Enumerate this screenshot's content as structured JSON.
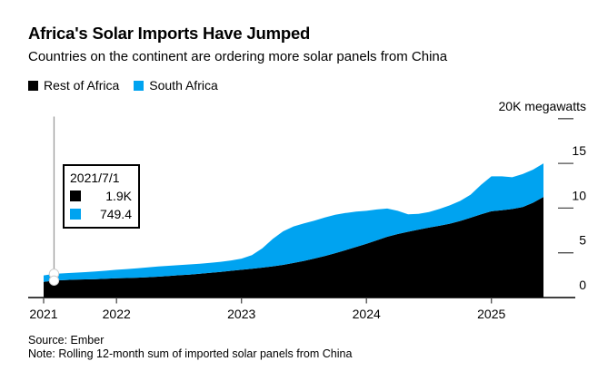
{
  "tooltip": {
    "date": "2021/7/1",
    "month_index": 1,
    "rows": [
      {
        "series": "Rest of Africa",
        "value": "1.9K"
      },
      {
        "series": "South Africa",
        "value": "749.4"
      }
    ]
  },
  "chart_data": {
    "type": "area",
    "stacked": true,
    "title": "Africa's Solar Imports Have Jumped",
    "subtitle": "Countries on the continent are ordering more solar panels from China",
    "source": "Source: Ember",
    "note": "Note: Rolling 12-month sum of imported solar panels from China",
    "unit_label": "20K megawatts",
    "value_unit": "thousand megawatts",
    "xlabel": "",
    "ylabel": "megawatts",
    "ylim": [
      0,
      20
    ],
    "y_ticks": [
      0,
      5,
      10,
      15
    ],
    "x_ticks": [
      {
        "label": "2021",
        "index": 0
      },
      {
        "label": "2022",
        "index": 7
      },
      {
        "label": "2023",
        "index": 19
      },
      {
        "label": "2024",
        "index": 31
      },
      {
        "label": "2025",
        "index": 43
      }
    ],
    "grid": false,
    "legend_position": "top-left",
    "categories": [
      "2021-06",
      "2021-07",
      "2021-08",
      "2021-09",
      "2021-10",
      "2021-11",
      "2021-12",
      "2022-01",
      "2022-02",
      "2022-03",
      "2022-04",
      "2022-05",
      "2022-06",
      "2022-07",
      "2022-08",
      "2022-09",
      "2022-10",
      "2022-11",
      "2022-12",
      "2023-01",
      "2023-02",
      "2023-03",
      "2023-04",
      "2023-05",
      "2023-06",
      "2023-07",
      "2023-08",
      "2023-09",
      "2023-10",
      "2023-11",
      "2023-12",
      "2024-01",
      "2024-02",
      "2024-03",
      "2024-04",
      "2024-05",
      "2024-06",
      "2024-07",
      "2024-08",
      "2024-09",
      "2024-10",
      "2024-11",
      "2024-12",
      "2025-01",
      "2025-02",
      "2025-03",
      "2025-04",
      "2025-05",
      "2025-06"
    ],
    "series": [
      {
        "name": "Rest of Africa",
        "color": "#000000",
        "values": [
          1.75,
          1.9,
          1.96,
          2.0,
          2.03,
          2.06,
          2.1,
          2.15,
          2.18,
          2.22,
          2.27,
          2.33,
          2.4,
          2.49,
          2.57,
          2.66,
          2.77,
          2.87,
          2.99,
          3.1,
          3.22,
          3.35,
          3.49,
          3.65,
          3.86,
          4.1,
          4.36,
          4.65,
          4.96,
          5.3,
          5.65,
          6.0,
          6.4,
          6.8,
          7.1,
          7.35,
          7.6,
          7.82,
          8.02,
          8.26,
          8.56,
          8.92,
          9.3,
          9.65,
          9.76,
          9.9,
          10.12,
          10.6,
          11.25
        ]
      },
      {
        "name": "South Africa",
        "color": "#00a3f0",
        "values": [
          0.72,
          0.75,
          0.76,
          0.78,
          0.81,
          0.85,
          0.9,
          0.95,
          1.0,
          1.06,
          1.11,
          1.14,
          1.15,
          1.14,
          1.13,
          1.12,
          1.11,
          1.13,
          1.16,
          1.25,
          1.53,
          2.15,
          3.06,
          3.75,
          4.09,
          4.2,
          4.24,
          4.3,
          4.29,
          4.15,
          3.95,
          3.7,
          3.45,
          3.15,
          2.6,
          1.95,
          1.75,
          1.73,
          1.88,
          2.04,
          2.24,
          2.58,
          3.3,
          3.9,
          3.79,
          3.55,
          3.68,
          3.7,
          3.75
        ]
      }
    ]
  }
}
